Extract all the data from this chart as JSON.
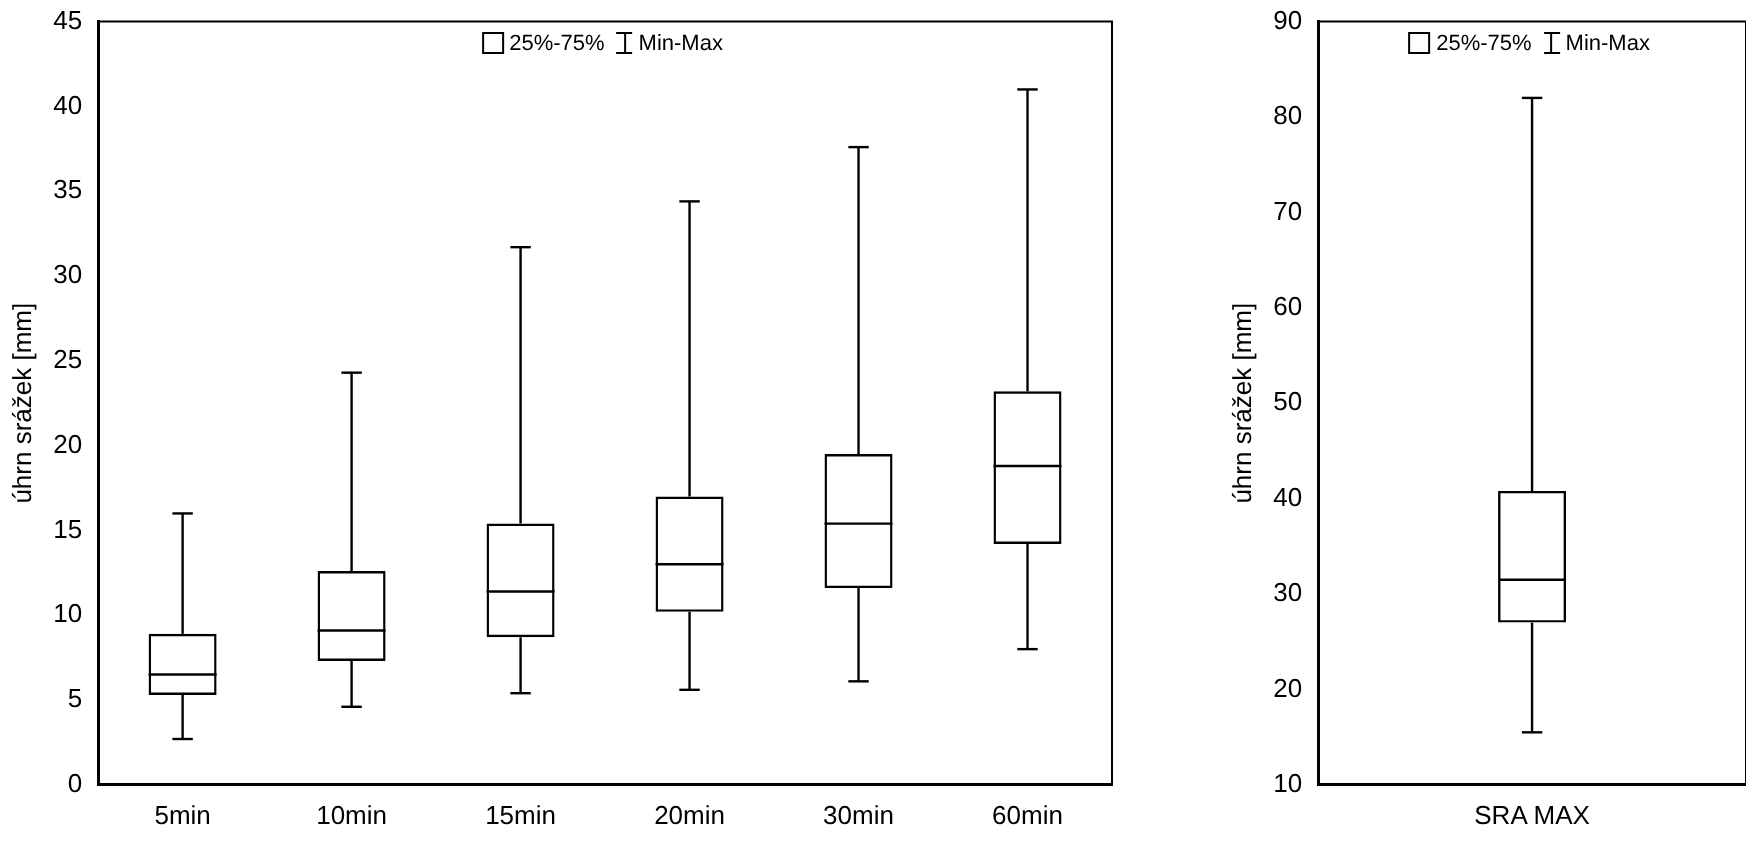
{
  "chart_data": [
    {
      "type": "box",
      "ylabel": "úhrn srážek [mm]",
      "categories": [
        "5min",
        "10min",
        "15min",
        "20min",
        "30min",
        "60min"
      ],
      "ylim": [
        0,
        45
      ],
      "yticks": [
        0,
        5,
        10,
        15,
        20,
        25,
        30,
        35,
        40,
        45
      ],
      "grid": false,
      "annotations": [
        "25%-75%",
        "Min-Max"
      ],
      "boxes": [
        {
          "low": 2.7,
          "q1": 5.3,
          "median": 6.5,
          "q3": 8.9,
          "high": 16
        },
        {
          "low": 4.6,
          "q1": 7.3,
          "median": 9.1,
          "q3": 12.6,
          "high": 24.3
        },
        {
          "low": 5.4,
          "q1": 8.7,
          "median": 11.4,
          "q3": 15.4,
          "high": 31.7
        },
        {
          "low": 5.6,
          "q1": 10.2,
          "median": 13,
          "q3": 17,
          "high": 34.4
        },
        {
          "low": 6.1,
          "q1": 11.6,
          "median": 15.4,
          "q3": 19.5,
          "high": 37.6
        },
        {
          "low": 8,
          "q1": 14.2,
          "median": 18.8,
          "q3": 23.2,
          "high": 41
        }
      ]
    },
    {
      "type": "box",
      "ylabel": "úhrn srážek [mm]",
      "categories": [
        "SRA MAX"
      ],
      "ylim": [
        10,
        90
      ],
      "yticks": [
        10,
        20,
        30,
        40,
        50,
        60,
        70,
        80,
        90
      ],
      "grid": false,
      "annotations": [
        "25%-75%",
        "Min-Max"
      ],
      "boxes": [
        {
          "low": 15.5,
          "q1": 27,
          "median": 31.5,
          "q3": 40.8,
          "high": 82
        }
      ]
    }
  ]
}
